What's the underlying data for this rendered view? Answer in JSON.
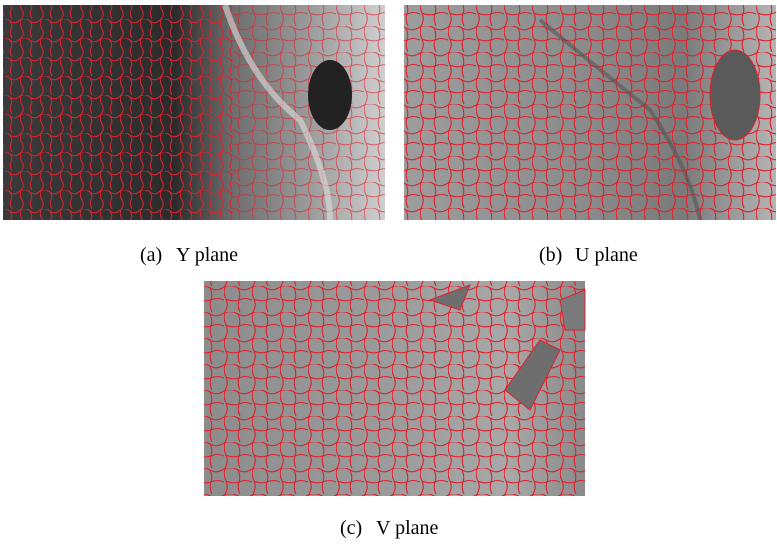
{
  "figure": {
    "subfigures": [
      {
        "label": "(a)",
        "caption": "Y plane"
      },
      {
        "label": "(b)",
        "caption": "U plane"
      },
      {
        "label": "(c)",
        "caption": "V plane"
      }
    ]
  }
}
